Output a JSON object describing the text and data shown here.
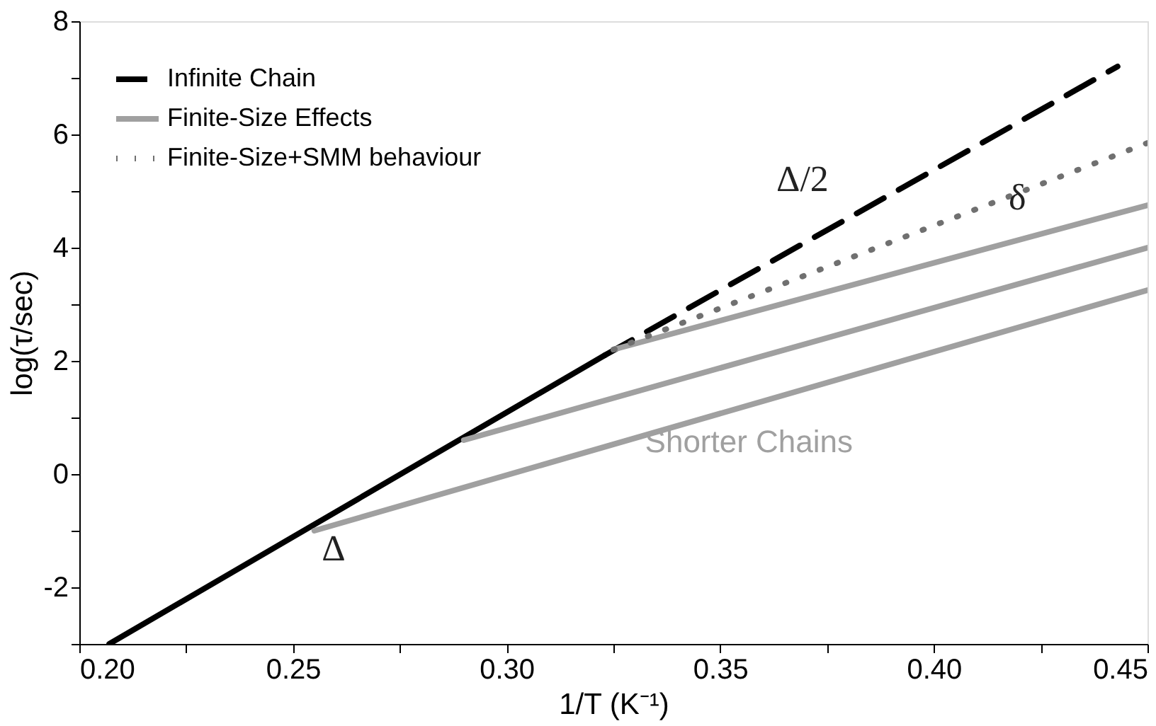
{
  "chart_data": {
    "type": "line",
    "xlabel": "1/T (K⁻¹)",
    "ylabel": "log(τ/sec)",
    "xlim": [
      0.2,
      0.45
    ],
    "ylim": [
      -3,
      8
    ],
    "xticks": [
      {
        "value": 0.2,
        "label": "0.20"
      },
      {
        "value": 0.225,
        "label": null
      },
      {
        "value": 0.25,
        "label": "0.25"
      },
      {
        "value": 0.275,
        "label": null
      },
      {
        "value": 0.3,
        "label": "0.30"
      },
      {
        "value": 0.325,
        "label": null
      },
      {
        "value": 0.35,
        "label": "0.35"
      },
      {
        "value": 0.375,
        "label": null
      },
      {
        "value": 0.4,
        "label": "0.40"
      },
      {
        "value": 0.425,
        "label": null
      },
      {
        "value": 0.45,
        "label": "0.45"
      }
    ],
    "yticks": [
      {
        "value": -3,
        "label": null
      },
      -2,
      {
        "value": -1,
        "label": null
      },
      0,
      {
        "value": 1,
        "label": null
      },
      2,
      {
        "value": 3,
        "label": null
      },
      4,
      {
        "value": 5,
        "label": null
      },
      6,
      {
        "value": 7,
        "label": null
      },
      8
    ],
    "grid": false,
    "legend": "top left",
    "series": [
      {
        "name": "Infinite Chain",
        "color": "#000000",
        "line_style": "dashed",
        "x": [
          0.323,
          0.443
        ],
        "values": [
          2.1,
          7.2
        ]
      },
      {
        "color": "#000000",
        "line_style": "solid",
        "x": [
          0.207,
          0.323
        ],
        "values": [
          -3,
          2.1
        ]
      },
      {
        "name": "Finite-Size Effects",
        "color": "#a0a0a0",
        "line_style": "solid",
        "x": [
          0.325,
          0.45
        ],
        "values": [
          2.2,
          4.75
        ]
      },
      {
        "color": "#a0a0a0",
        "line_style": "solid",
        "x": [
          0.29,
          0.45
        ],
        "values": [
          0.6,
          4.0
        ]
      },
      {
        "color": "#a0a0a0",
        "line_style": "solid",
        "x": [
          0.255,
          0.45
        ],
        "values": [
          -1.0,
          3.25
        ]
      },
      {
        "name": "Finite-Size+SMM behaviour",
        "color": "#707070",
        "line_style": "dotted",
        "x": [
          0.325,
          0.45
        ],
        "values": [
          2.2,
          5.85
        ]
      }
    ],
    "annotations": [
      "Δ/2",
      "δ",
      "Δ",
      "Shorter Chains"
    ]
  }
}
